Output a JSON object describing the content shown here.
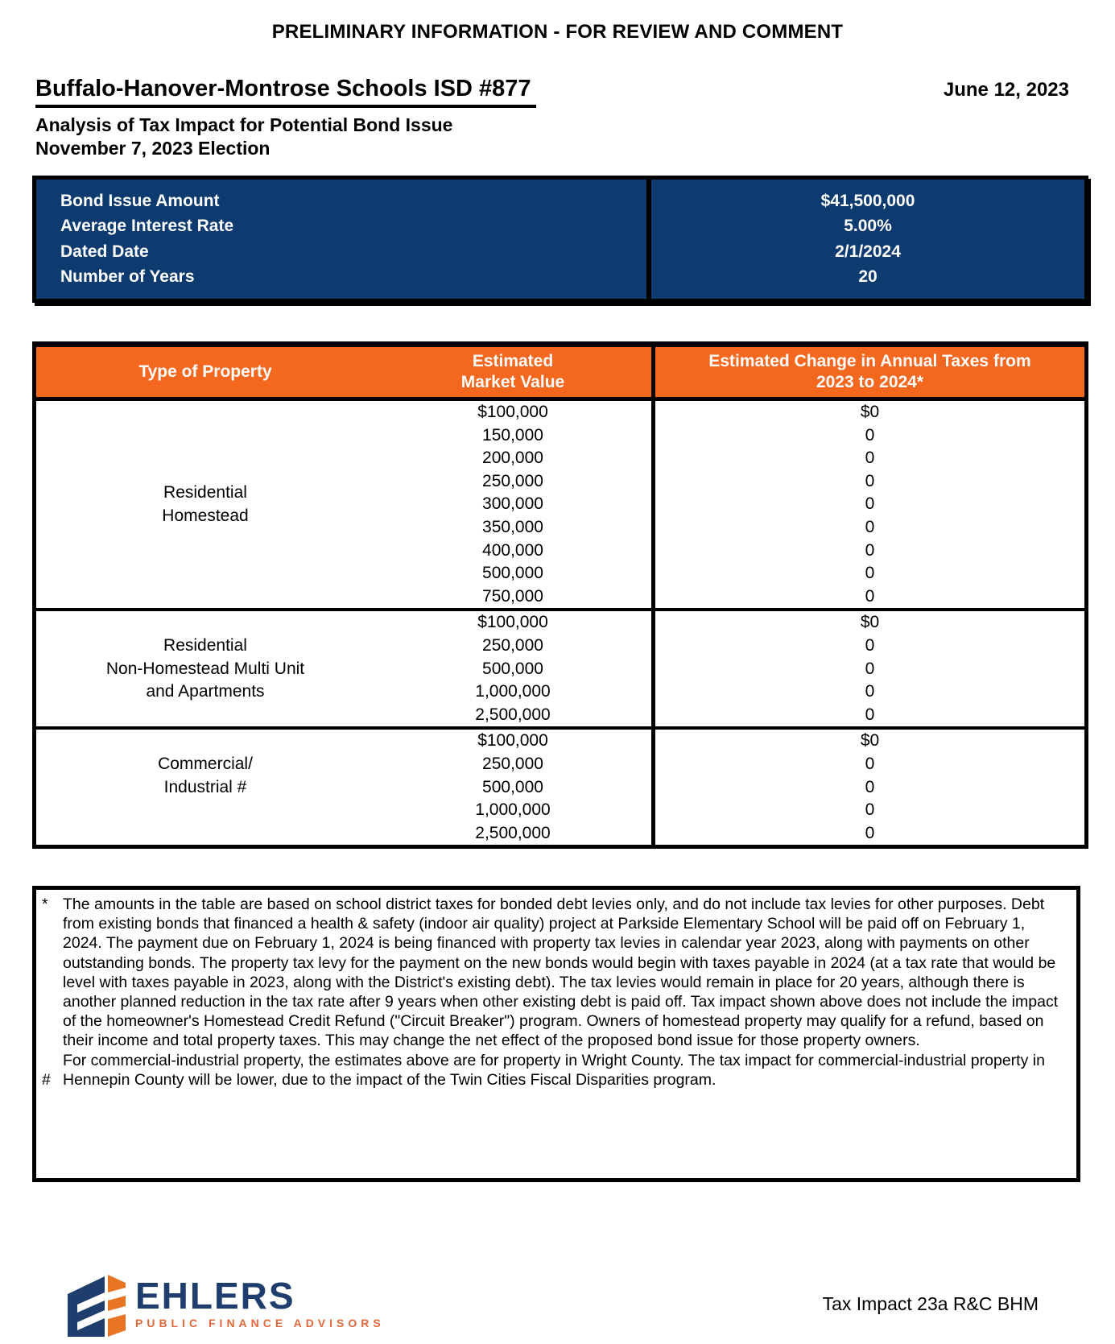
{
  "header": {
    "banner": "PRELIMINARY INFORMATION - FOR REVIEW AND COMMENT",
    "title": "Buffalo-Hanover-Montrose Schools ISD #877",
    "date": "June 12, 2023",
    "subtitle1": "Analysis of Tax Impact for Potential Bond Issue",
    "subtitle2": "November 7, 2023 Election"
  },
  "bond_summary": {
    "rows": [
      {
        "label": "Bond Issue Amount",
        "value": "$41,500,000"
      },
      {
        "label": "Average Interest Rate",
        "value": "5.00%"
      },
      {
        "label": "Dated Date",
        "value": "2/1/2024"
      },
      {
        "label": "Number of Years",
        "value": "20"
      }
    ]
  },
  "tax_table": {
    "header_property": "Type of Property",
    "header_value": [
      "Estimated",
      "Market Value"
    ],
    "header_change": [
      "Estimated Change in Annual Taxes from",
      "2023 to 2024*"
    ],
    "sections": [
      {
        "label_lines": [
          "Residential",
          "Homestead"
        ],
        "label_offset_up": false,
        "rows": [
          [
            "$100,000",
            "$0"
          ],
          [
            "150,000",
            "0"
          ],
          [
            "200,000",
            "0"
          ],
          [
            "250,000",
            "0"
          ],
          [
            "300,000",
            "0"
          ],
          [
            "350,000",
            "0"
          ],
          [
            "400,000",
            "0"
          ],
          [
            "500,000",
            "0"
          ],
          [
            "750,000",
            "0"
          ]
        ]
      },
      {
        "label_lines": [
          "Residential",
          "Non-Homestead Multi Unit",
          "and Apartments"
        ],
        "label_offset_up": false,
        "rows": [
          [
            "$100,000",
            "$0"
          ],
          [
            "250,000",
            "0"
          ],
          [
            "500,000",
            "0"
          ],
          [
            "1,000,000",
            "0"
          ],
          [
            "2,500,000",
            "0"
          ]
        ]
      },
      {
        "label_lines": [
          "Commercial/",
          "Industrial #"
        ],
        "label_offset_up": true,
        "rows": [
          [
            "$100,000",
            "$0"
          ],
          [
            "250,000",
            "0"
          ],
          [
            "500,000",
            "0"
          ],
          [
            "1,000,000",
            "0"
          ],
          [
            "2,500,000",
            "0"
          ]
        ]
      }
    ]
  },
  "footnotes": [
    {
      "marker": "*",
      "text": "The amounts in the table are based on school district taxes for bonded debt levies only, and do not include tax levies for other purposes.  Debt from existing bonds that financed a health & safety (indoor air quality) project at Parkside Elementary School will be paid off on February 1, 2024.  The payment due on February 1, 2024 is being financed with property tax levies in calendar year 2023, along with payments on other outstanding bonds. The property tax levy for the payment on the new bonds would begin with taxes payable in 2024 (at a tax rate that would be level with taxes payable in 2023, along with the District's existing debt).  The tax levies would remain in place for 20 years, although there is another planned reduction in the tax rate after 9 years when other existing debt is paid off. Tax impact shown above does not include the impact of the homeowner's Homestead Credit Refund (\"Circuit Breaker\") program. Owners of homestead property may qualify for a refund, based on their income and total property taxes.  This may change the net effect of the proposed bond issue for those property owners."
    },
    {
      "marker": "#",
      "text": "For commercial-industrial property, the estimates above are for property in Wright County.  The tax impact for commercial-industrial property in Hennepin County will be lower, due to the impact of the Twin Cities Fiscal Disparities program."
    }
  ],
  "footer": {
    "logo_name": "EHLERS",
    "logo_tagline": "PUBLIC FINANCE ADVISORS",
    "doc_ref": "Tax Impact 23a R&C BHM"
  },
  "colors": {
    "table_navy": "#0D3B70",
    "table_orange": "#F4671E",
    "logo_navy": "#1F3E6E",
    "logo_orange": "#E2683B"
  }
}
